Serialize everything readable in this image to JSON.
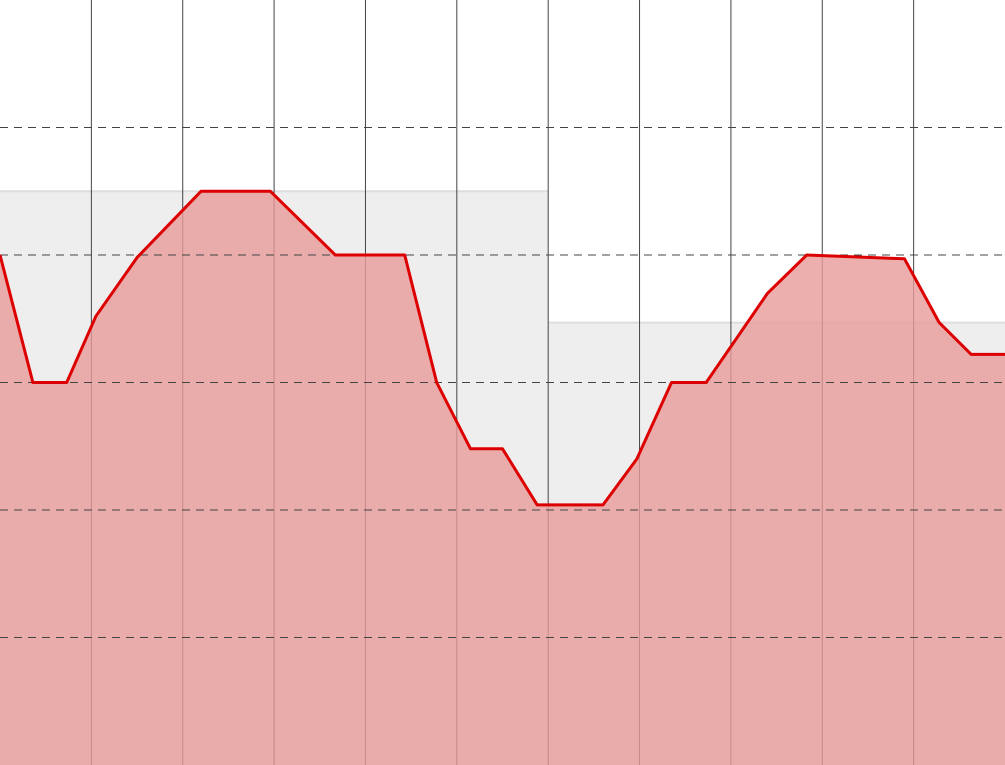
{
  "chart_data": {
    "type": "area",
    "title": "",
    "xlabel": "",
    "ylabel": "",
    "grid": true,
    "legend": "none",
    "xlim": [
      0,
      11
    ],
    "ylim": [
      0,
      6
    ],
    "x_gridlines": [
      1,
      2,
      3,
      4,
      5,
      6,
      7,
      8,
      9,
      10
    ],
    "y_gridlines": [
      1,
      2,
      3,
      4,
      5
    ],
    "band": {
      "name": "reference-band",
      "color": "#eeeeee",
      "segments": [
        {
          "x_start": 0,
          "x_end": 6,
          "y_top": 4.5
        },
        {
          "x_start": 6,
          "x_end": 11,
          "y_top": 3.47
        }
      ]
    },
    "series": [
      {
        "name": "series-1",
        "color": "#dd0000",
        "fill": "#e89a9a",
        "fill_opacity": 0.8,
        "x": [
          0,
          0.36,
          0.73,
          1.05,
          1.5,
          2.2,
          2.96,
          3.67,
          4.43,
          4.78,
          5.15,
          5.5,
          5.88,
          6.6,
          6.97,
          7.35,
          7.73,
          8.4,
          8.83,
          9.9,
          10.28,
          10.63,
          11
        ],
        "values": [
          4.0,
          3.0,
          3.0,
          3.52,
          3.98,
          4.5,
          4.5,
          4.0,
          4.0,
          3.0,
          2.48,
          2.48,
          2.04,
          2.04,
          2.4,
          3.0,
          3.0,
          3.7,
          4.0,
          3.97,
          3.47,
          3.22,
          3.22
        ]
      }
    ],
    "colors": {
      "background": "#ffffff",
      "vertical_grid": "#444444",
      "horizontal_grid": "#444444"
    }
  }
}
